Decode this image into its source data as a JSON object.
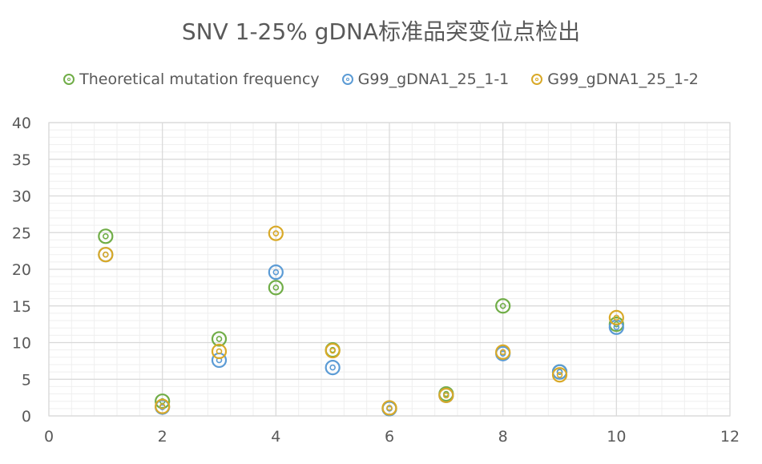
{
  "chart_data": {
    "type": "scatter",
    "title": "SNV 1-25% gDNA标准品突变位点检出",
    "xlim": [
      0,
      12
    ],
    "ylim": [
      0,
      40
    ],
    "x_ticks": [
      0,
      2,
      4,
      6,
      8,
      10,
      12
    ],
    "y_ticks": [
      0,
      5,
      10,
      15,
      20,
      25,
      30,
      35,
      40
    ],
    "grid": true,
    "legend_position": "top",
    "series": [
      {
        "name": "Theoretical mutation frequency",
        "color": "#70AD47",
        "points": [
          {
            "x": 1,
            "y": 24.5
          },
          {
            "x": 2,
            "y": 2.0
          },
          {
            "x": 3,
            "y": 10.5
          },
          {
            "x": 4,
            "y": 17.5
          },
          {
            "x": 5,
            "y": 9.0
          },
          {
            "x": 6,
            "y": 1.0
          },
          {
            "x": 7,
            "y": 3.0
          },
          {
            "x": 8,
            "y": 15.0
          },
          {
            "x": 9,
            "y": 6.0
          },
          {
            "x": 10,
            "y": 12.5
          }
        ]
      },
      {
        "name": "G99_gDNA1_25_1-1",
        "color": "#5B9BD5",
        "points": [
          {
            "x": 1,
            "y": 22.0
          },
          {
            "x": 2,
            "y": 1.2
          },
          {
            "x": 3,
            "y": 7.6
          },
          {
            "x": 4,
            "y": 19.6
          },
          {
            "x": 5,
            "y": 6.6
          },
          {
            "x": 6,
            "y": 1.0
          },
          {
            "x": 7,
            "y": 2.8
          },
          {
            "x": 8,
            "y": 8.5
          },
          {
            "x": 9,
            "y": 6.0
          },
          {
            "x": 10,
            "y": 12.1
          }
        ]
      },
      {
        "name": "G99_gDNA1_25_1-2",
        "color": "#D9A927",
        "points": [
          {
            "x": 1,
            "y": 22.0
          },
          {
            "x": 2,
            "y": 1.3
          },
          {
            "x": 3,
            "y": 8.8
          },
          {
            "x": 4,
            "y": 24.9
          },
          {
            "x": 5,
            "y": 8.9
          },
          {
            "x": 6,
            "y": 1.1
          },
          {
            "x": 7,
            "y": 2.8
          },
          {
            "x": 8,
            "y": 8.7
          },
          {
            "x": 9,
            "y": 5.6
          },
          {
            "x": 10,
            "y": 13.4
          }
        ]
      }
    ]
  }
}
